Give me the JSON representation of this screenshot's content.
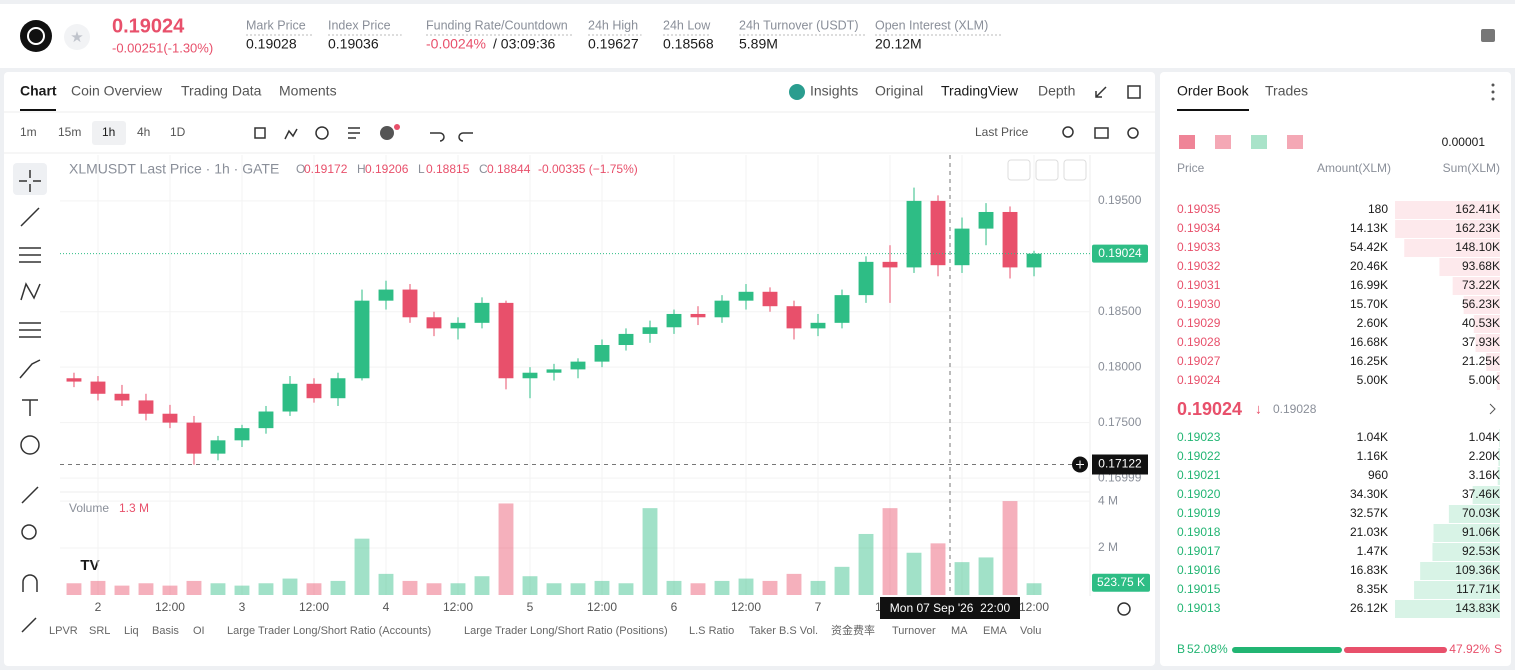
{
  "header": {
    "price": "0.19024",
    "change": "-0.00251(-1.30%)",
    "stats": [
      {
        "label": "Mark Price",
        "value": "0.19028"
      },
      {
        "label": "Index Price",
        "value": "0.19036"
      },
      {
        "label": "Funding Rate/Countdown",
        "value": "-0.0024%",
        "extra": "/ 03:09:36"
      },
      {
        "label": "24h High",
        "value": "0.19627"
      },
      {
        "label": "24h Low",
        "value": "0.18568"
      },
      {
        "label": "24h Turnover (USDT)",
        "value": "5.89M"
      },
      {
        "label": "Open Interest (XLM)",
        "value": "20.12M"
      }
    ]
  },
  "tabs": [
    "Chart",
    "Coin Overview",
    "Trading Data",
    "Moments"
  ],
  "views": [
    "Insights",
    "Original",
    "TradingView",
    "Depth"
  ],
  "intervals": [
    "1m",
    "15m",
    "1h",
    "4h",
    "1D"
  ],
  "price_type": "Last Price",
  "indicators": [
    "LPVR",
    "SRL",
    "Liq",
    "Basis",
    "OI",
    "Large Trader Long/Short Ratio (Accounts)",
    "Large Trader Long/Short Ratio (Positions)",
    "L.S Ratio",
    "Taker B.S Vol.",
    "资金费率",
    "Turnover",
    "MA",
    "EMA",
    "Volu"
  ],
  "chart_data": {
    "type": "candlestick",
    "title": "XLMUSDT Last Price · 1h · GATE",
    "ohlc_legend": [
      {
        "key": "O",
        "value": "0.19172"
      },
      {
        "key": "H",
        "value": "0.19206"
      },
      {
        "key": "L",
        "value": "0.18815"
      },
      {
        "key": "C",
        "value": "0.18844"
      }
    ],
    "change_legend": "-0.00335 (−1.75%)",
    "colors": {
      "up": "#2ebd85",
      "down": "#e8506b"
    },
    "x": [
      -4,
      0,
      4,
      8,
      12,
      16,
      20,
      24,
      28,
      32,
      36,
      40,
      44,
      48,
      52,
      56,
      60,
      64,
      68,
      72,
      76,
      80,
      84,
      88,
      92,
      96,
      100,
      104,
      108,
      112,
      116,
      120,
      124,
      128,
      132,
      136,
      140,
      144,
      148,
      152,
      156
    ],
    "open": [
      0.179,
      0.1787,
      0.1776,
      0.177,
      0.1758,
      0.175,
      0.1722,
      0.1734,
      0.1745,
      0.176,
      0.1785,
      0.1772,
      0.179,
      0.186,
      0.187,
      0.1845,
      0.1835,
      0.184,
      0.1858,
      0.179,
      0.1795,
      0.1798,
      0.1805,
      0.182,
      0.183,
      0.1836,
      0.1848,
      0.1845,
      0.186,
      0.1868,
      0.1855,
      0.1835,
      0.184,
      0.1865,
      0.1895,
      0.189,
      0.195,
      0.1892,
      0.1925,
      0.194,
      0.189
    ],
    "high": [
      0.1795,
      0.1792,
      0.1784,
      0.1776,
      0.1766,
      0.1756,
      0.1738,
      0.1748,
      0.1765,
      0.1792,
      0.179,
      0.1795,
      0.187,
      0.1878,
      0.1875,
      0.185,
      0.1845,
      0.1863,
      0.186,
      0.18,
      0.1803,
      0.1808,
      0.1825,
      0.1835,
      0.1842,
      0.1852,
      0.1855,
      0.1865,
      0.1875,
      0.1872,
      0.186,
      0.1848,
      0.187,
      0.19,
      0.191,
      0.1962,
      0.1955,
      0.1935,
      0.1948,
      0.1945,
      0.1905
    ],
    "low": [
      0.1782,
      0.177,
      0.1765,
      0.1752,
      0.1745,
      0.1712,
      0.1716,
      0.1728,
      0.174,
      0.1756,
      0.1768,
      0.1765,
      0.1788,
      0.1852,
      0.184,
      0.1828,
      0.1825,
      0.1835,
      0.178,
      0.1772,
      0.1788,
      0.179,
      0.18,
      0.1815,
      0.1822,
      0.183,
      0.1838,
      0.184,
      0.1852,
      0.185,
      0.1825,
      0.1828,
      0.1835,
      0.1858,
      0.1858,
      0.1885,
      0.1882,
      0.1885,
      0.191,
      0.188,
      0.1882
    ],
    "close": [
      0.1787,
      0.1776,
      0.177,
      0.1758,
      0.175,
      0.1722,
      0.1734,
      0.1745,
      0.176,
      0.1785,
      0.1772,
      0.179,
      0.186,
      0.187,
      0.1845,
      0.1835,
      0.184,
      0.1858,
      0.179,
      0.1795,
      0.1798,
      0.1805,
      0.182,
      0.183,
      0.1836,
      0.1848,
      0.1845,
      0.186,
      0.1868,
      0.1855,
      0.1835,
      0.184,
      0.1865,
      0.1895,
      0.189,
      0.195,
      0.1892,
      0.1925,
      0.194,
      0.189,
      0.19024
    ],
    "volume": [
      0.5,
      0.6,
      0.4,
      0.5,
      0.4,
      0.6,
      0.5,
      0.4,
      0.5,
      0.7,
      0.5,
      0.6,
      2.4,
      0.9,
      0.6,
      0.5,
      0.5,
      0.8,
      3.9,
      0.8,
      0.5,
      0.5,
      0.6,
      0.5,
      3.7,
      0.6,
      0.5,
      0.6,
      0.7,
      0.6,
      0.9,
      0.6,
      1.2,
      2.6,
      3.7,
      1.8,
      2.2,
      1.4,
      1.6,
      4.0,
      0.5
    ],
    "xlim": [
      -6.33,
      165.33
    ],
    "xticks": [
      {
        "value": 0,
        "label": "2"
      },
      {
        "value": 12,
        "label": "12:00"
      },
      {
        "value": 24,
        "label": "3"
      },
      {
        "value": 36,
        "label": "12:00"
      },
      {
        "value": 48,
        "label": "4"
      },
      {
        "value": 60,
        "label": "12:00"
      },
      {
        "value": 72,
        "label": "5"
      },
      {
        "value": 84,
        "label": "12:00"
      },
      {
        "value": 96,
        "label": "6"
      },
      {
        "value": 108,
        "label": "12:00"
      },
      {
        "value": 120,
        "label": "7"
      },
      {
        "value": 132,
        "label": "12:00"
      },
      {
        "value": 144,
        "label": "8"
      },
      {
        "value": 156,
        "label": "12:00"
      }
    ],
    "ylim": [
      0.16892,
      0.19914
    ],
    "yticks": [
      {
        "value": 0.195,
        "label": "0.19500"
      },
      {
        "value": 0.185,
        "label": "0.18500"
      },
      {
        "value": 0.18,
        "label": "0.18000"
      },
      {
        "value": 0.175,
        "label": "0.17500"
      },
      {
        "value": 0.16999,
        "label": "0.16999"
      }
    ],
    "grid": true,
    "volume_title": "Volume",
    "volume_value": "1.3 M",
    "vol_ylim": [
      0,
      4.26
    ],
    "vol_yticks": [
      {
        "value": 2,
        "label": "2 M"
      },
      {
        "value": 4,
        "label": "4 M"
      }
    ],
    "last_price": {
      "value": 0.19024,
      "label": "0.19024"
    },
    "last_volume": {
      "value": 0.52375,
      "label": "523.75 K"
    },
    "crosshair": {
      "price": {
        "value": 0.17122,
        "label": "0.17122"
      },
      "time": "Mon 07 Sep '26  22:00"
    }
  },
  "order_book": {
    "tabs": [
      "Order Book",
      "Trades"
    ],
    "precision": "0.00001",
    "columns": [
      "Price",
      "Amount(XLM)",
      "Sum(XLM)"
    ],
    "asks": [
      {
        "price": "0.19035",
        "amount": "180",
        "sum": {
          "value": 162.41,
          "label": "162.41K"
        }
      },
      {
        "price": "0.19034",
        "amount": "14.13K",
        "sum": {
          "value": 162.23,
          "label": "162.23K"
        }
      },
      {
        "price": "0.19033",
        "amount": "54.42K",
        "sum": {
          "value": 148.1,
          "label": "148.10K"
        }
      },
      {
        "price": "0.19032",
        "amount": "20.46K",
        "sum": {
          "value": 93.68,
          "label": "93.68K"
        }
      },
      {
        "price": "0.19031",
        "amount": "16.99K",
        "sum": {
          "value": 73.22,
          "label": "73.22K"
        }
      },
      {
        "price": "0.19030",
        "amount": "15.70K",
        "sum": {
          "value": 56.23,
          "label": "56.23K"
        }
      },
      {
        "price": "0.19029",
        "amount": "2.60K",
        "sum": {
          "value": 40.53,
          "label": "40.53K"
        }
      },
      {
        "price": "0.19028",
        "amount": "16.68K",
        "sum": {
          "value": 37.93,
          "label": "37.93K"
        }
      },
      {
        "price": "0.19027",
        "amount": "16.25K",
        "sum": {
          "value": 21.25,
          "label": "21.25K"
        }
      },
      {
        "price": "0.19024",
        "amount": "5.00K",
        "sum": {
          "value": 5.0,
          "label": "5.00K"
        }
      }
    ],
    "last": {
      "price": "0.19024",
      "mark": "0.19028"
    },
    "bids": [
      {
        "price": "0.19023",
        "amount": "1.04K",
        "sum": {
          "value": 1.04,
          "label": "1.04K"
        }
      },
      {
        "price": "0.19022",
        "amount": "1.16K",
        "sum": {
          "value": 2.2,
          "label": "2.20K"
        }
      },
      {
        "price": "0.19021",
        "amount": "960",
        "sum": {
          "value": 3.16,
          "label": "3.16K"
        }
      },
      {
        "price": "0.19020",
        "amount": "34.30K",
        "sum": {
          "value": 37.46,
          "label": "37.46K"
        }
      },
      {
        "price": "0.19019",
        "amount": "32.57K",
        "sum": {
          "value": 70.03,
          "label": "70.03K"
        }
      },
      {
        "price": "0.19018",
        "amount": "21.03K",
        "sum": {
          "value": 91.06,
          "label": "91.06K"
        }
      },
      {
        "price": "0.19017",
        "amount": "1.47K",
        "sum": {
          "value": 92.53,
          "label": "92.53K"
        }
      },
      {
        "price": "0.19016",
        "amount": "16.83K",
        "sum": {
          "value": 109.36,
          "label": "109.36K"
        }
      },
      {
        "price": "0.19015",
        "amount": "8.35K",
        "sum": {
          "value": 117.71,
          "label": "117.71K"
        }
      },
      {
        "price": "0.19013",
        "amount": "26.12K",
        "sum": {
          "value": 143.83,
          "label": "143.83K"
        }
      }
    ],
    "ratio": {
      "buy_label": "B",
      "buy": {
        "value": 52.08,
        "label": "52.08%"
      },
      "sell": {
        "value": 47.92,
        "label": "47.92%"
      },
      "sell_label": "S"
    }
  }
}
